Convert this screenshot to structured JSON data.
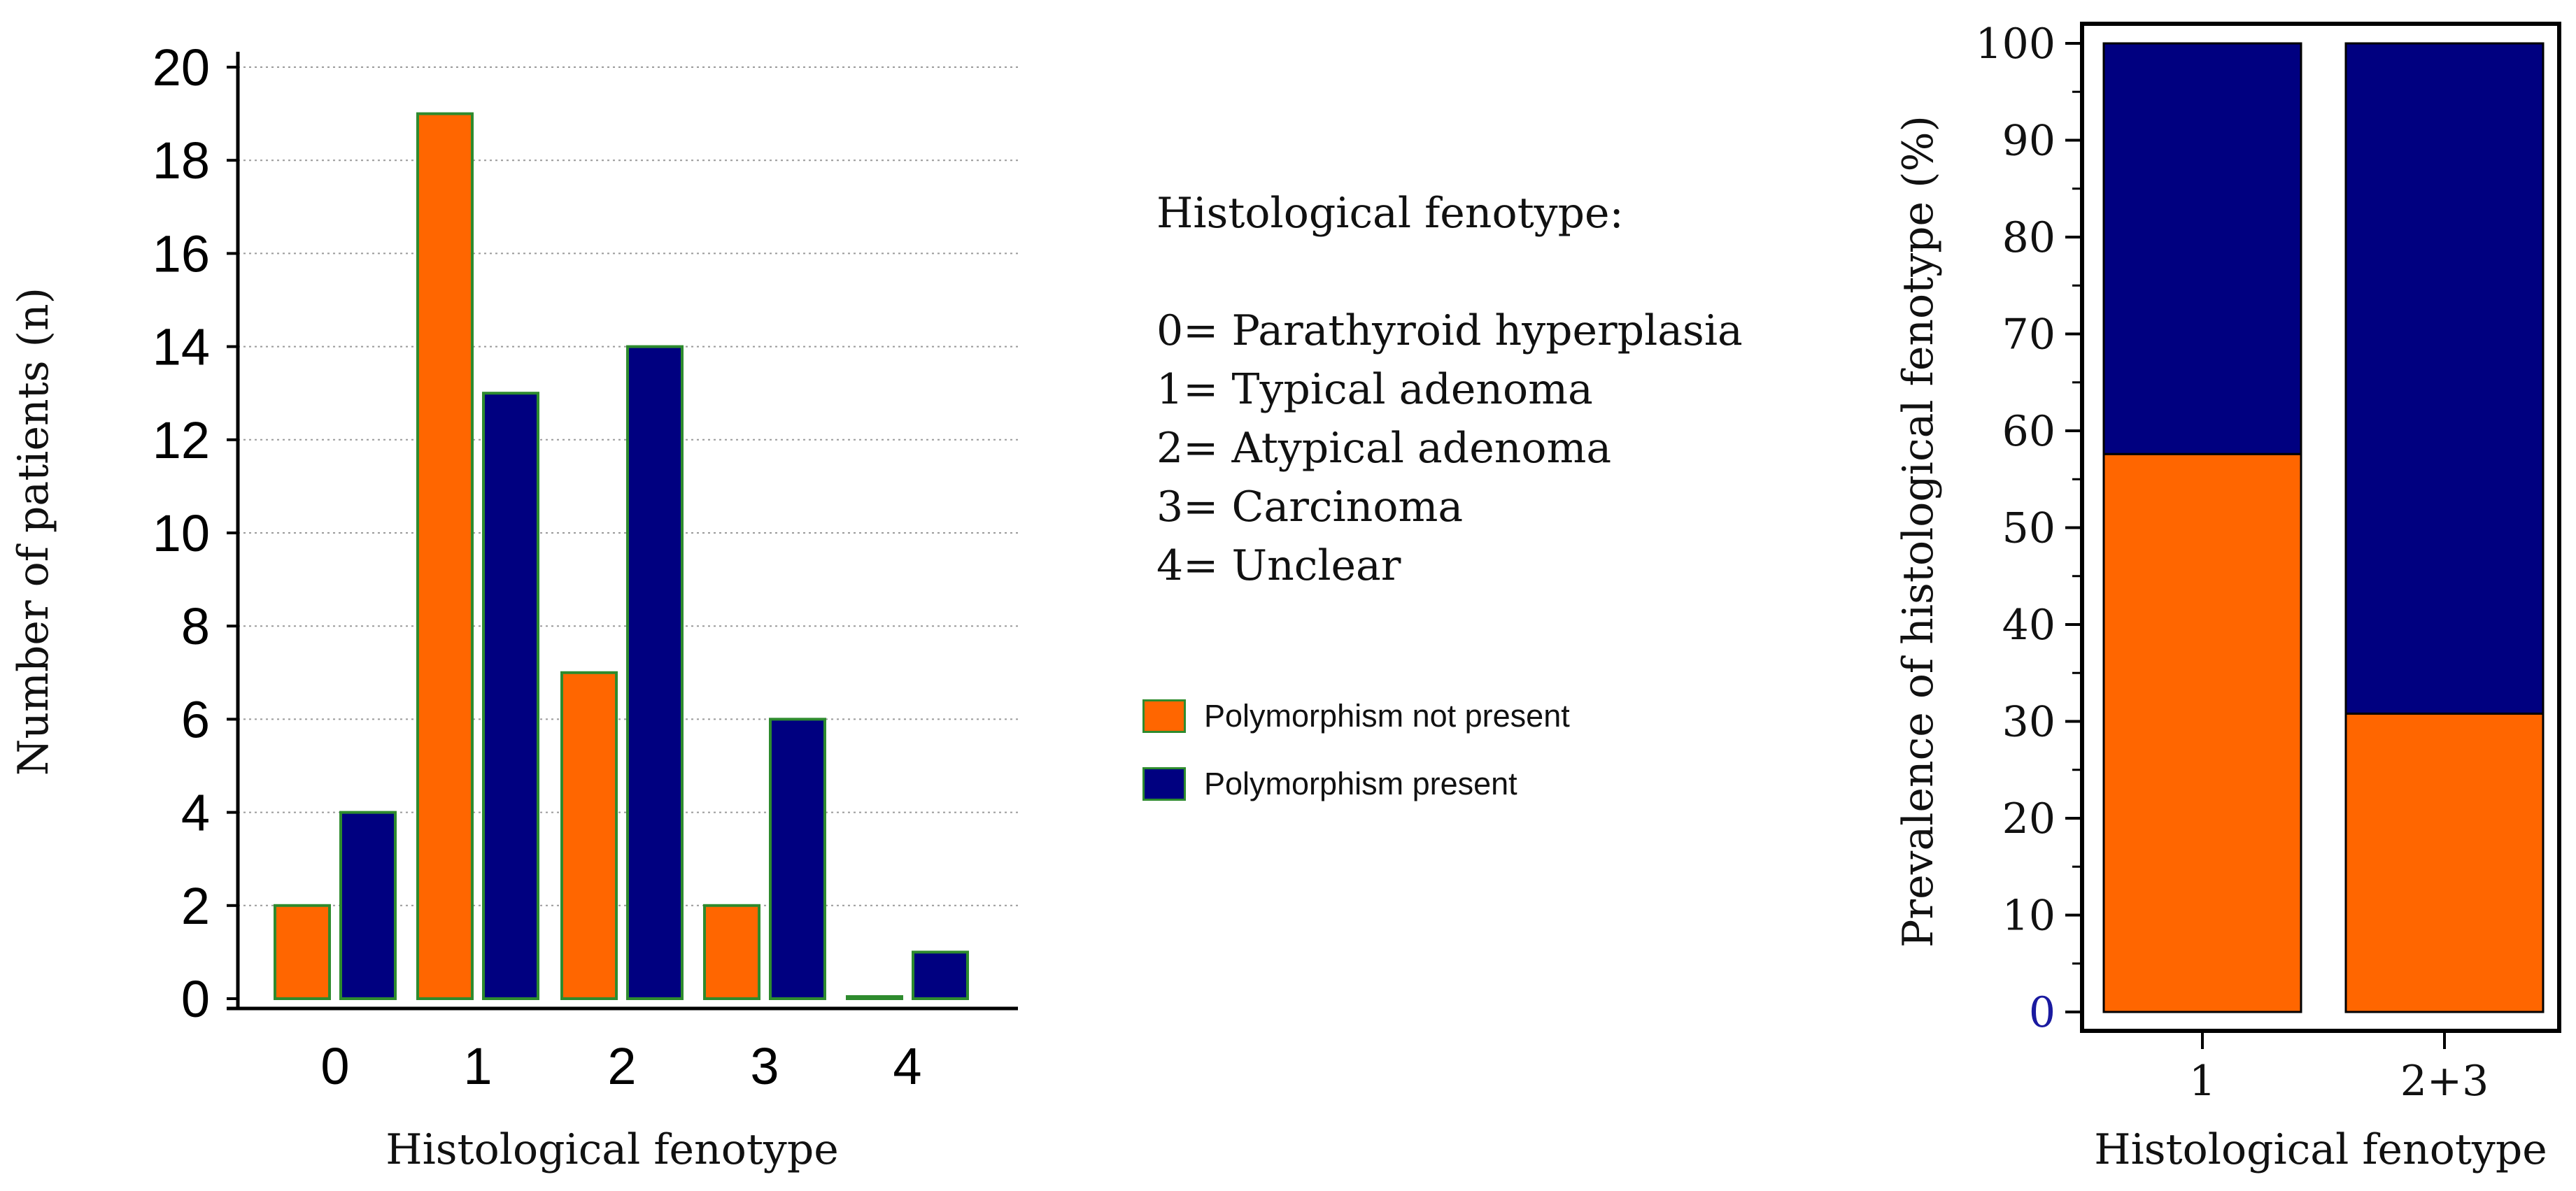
{
  "chart_data": [
    {
      "type": "bar",
      "title": "",
      "xlabel": "Histological fenotype",
      "ylabel": "Number of patients (n)",
      "categories": [
        "0",
        "1",
        "2",
        "3",
        "4"
      ],
      "series": [
        {
          "name": "Polymorphism not present",
          "color": "#ff6600",
          "values": [
            2,
            19,
            7,
            2,
            0
          ]
        },
        {
          "name": "Polymorphism present",
          "color": "#000080",
          "values": [
            4,
            13,
            14,
            6,
            1
          ]
        }
      ],
      "ylim": [
        0,
        20
      ],
      "yticks": [
        "0",
        "2",
        "4",
        "6",
        "8",
        "10",
        "12",
        "14",
        "16",
        "18",
        "20"
      ],
      "grid": true
    },
    {
      "type": "bar",
      "stacked": true,
      "title": "",
      "xlabel": "Histological fenotype",
      "ylabel": "Prevalence of histological fenotype (%)",
      "categories": [
        "1",
        "2+3"
      ],
      "series": [
        {
          "name": "Polymorphism not present",
          "color": "#ff6600",
          "values": [
            57.6,
            30.8
          ]
        },
        {
          "name": "Polymorphism present",
          "color": "#000080",
          "values": [
            42.4,
            69.2
          ]
        }
      ],
      "ylim": [
        0,
        100
      ],
      "yticks": [
        "0",
        "10",
        "20",
        "30",
        "40",
        "50",
        "60",
        "70",
        "80",
        "90",
        "100"
      ]
    }
  ],
  "legend": {
    "heading": "Histological fenotype:",
    "codes": [
      "0= Parathyroid hyperplasia",
      "1= Typical adenoma",
      "2= Atypical adenoma",
      "3= Carcinoma",
      "4= Unclear"
    ],
    "series_labels": [
      "Polymorphism not present",
      "Polymorphism present"
    ],
    "colors": {
      "not_present": "#ff6600",
      "present": "#000080",
      "outline": "#2e8b2e"
    }
  }
}
